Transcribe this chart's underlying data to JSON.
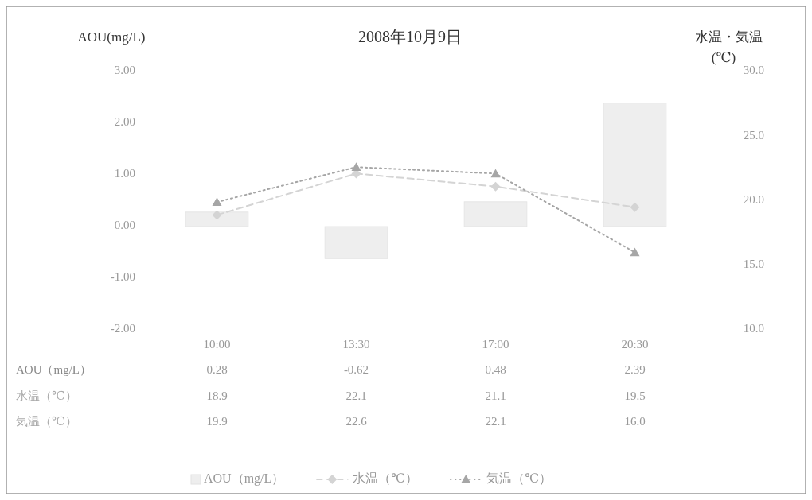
{
  "chart_data": {
    "type": "line",
    "title": "2008年10月9日",
    "ylabel": "AOU(mg/L)",
    "y2label": "水温・気温\n(℃)",
    "categories": [
      "10:00",
      "13:30",
      "17:00",
      "20:30"
    ],
    "ylim": [
      -2,
      3
    ],
    "yticks": [
      {
        "value": -2,
        "label": "-2.00"
      },
      {
        "value": -1,
        "label": "-1.00"
      },
      {
        "value": 0,
        "label": "0.00"
      },
      {
        "value": 1,
        "label": "1.00"
      },
      {
        "value": 2,
        "label": "2.00"
      },
      {
        "value": 3,
        "label": "3.00"
      }
    ],
    "y2lim": [
      10,
      30
    ],
    "y2ticks": [
      {
        "value": 10,
        "label": "10.0"
      },
      {
        "value": 15,
        "label": "15.0"
      },
      {
        "value": 20,
        "label": "20.0"
      },
      {
        "value": 25,
        "label": "25.0"
      },
      {
        "value": 30,
        "label": "30.0"
      }
    ],
    "series": [
      {
        "name": "AOU（mg/L）",
        "type": "bar",
        "color": "#eeeeee",
        "values": [
          0.28,
          -0.62,
          0.48,
          2.39
        ],
        "value_labels": [
          "0.28",
          "-0.62",
          "0.48",
          "2.39"
        ]
      },
      {
        "name": "水温（℃）",
        "axis": "y2",
        "color": "#d4d4d4",
        "marker": "diamond",
        "line_style": "dashed",
        "values": [
          18.9,
          22.1,
          21.1,
          19.5
        ],
        "value_labels": [
          "18.9",
          "22.1",
          "21.1",
          "19.5"
        ]
      },
      {
        "name": "気温（℃）",
        "axis": "y2",
        "color": "#a6a6a6",
        "marker": "triangle",
        "line_style": "dotted",
        "values": [
          19.9,
          22.6,
          22.1,
          16.0
        ],
        "value_labels": [
          "19.9",
          "22.6",
          "22.1",
          "16.0"
        ]
      }
    ],
    "legend": "bottom"
  }
}
